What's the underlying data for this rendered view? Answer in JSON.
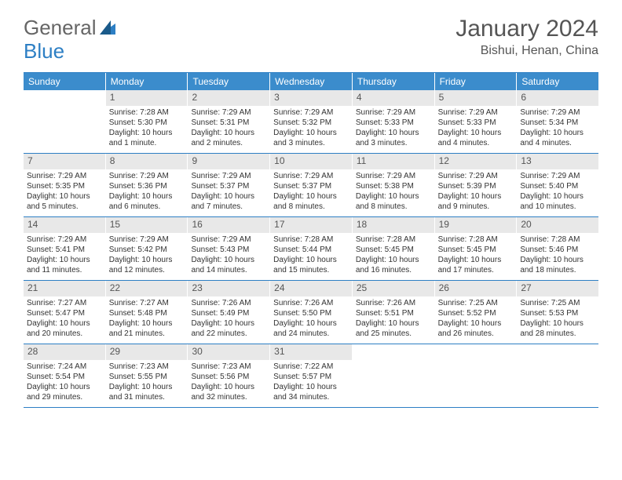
{
  "logo": {
    "text1": "General",
    "text2": "Blue"
  },
  "title": "January 2024",
  "location": "Bishui, Henan, China",
  "colors": {
    "header_bg": "#3b8ccc",
    "border": "#2d7fc4",
    "daynum_bg": "#e8e8e8",
    "text": "#555555"
  },
  "weekdays": [
    "Sunday",
    "Monday",
    "Tuesday",
    "Wednesday",
    "Thursday",
    "Friday",
    "Saturday"
  ],
  "start_offset": 1,
  "days": [
    {
      "n": 1,
      "sr": "7:28 AM",
      "ss": "5:30 PM",
      "dl": "10 hours and 1 minute."
    },
    {
      "n": 2,
      "sr": "7:29 AM",
      "ss": "5:31 PM",
      "dl": "10 hours and 2 minutes."
    },
    {
      "n": 3,
      "sr": "7:29 AM",
      "ss": "5:32 PM",
      "dl": "10 hours and 3 minutes."
    },
    {
      "n": 4,
      "sr": "7:29 AM",
      "ss": "5:33 PM",
      "dl": "10 hours and 3 minutes."
    },
    {
      "n": 5,
      "sr": "7:29 AM",
      "ss": "5:33 PM",
      "dl": "10 hours and 4 minutes."
    },
    {
      "n": 6,
      "sr": "7:29 AM",
      "ss": "5:34 PM",
      "dl": "10 hours and 4 minutes."
    },
    {
      "n": 7,
      "sr": "7:29 AM",
      "ss": "5:35 PM",
      "dl": "10 hours and 5 minutes."
    },
    {
      "n": 8,
      "sr": "7:29 AM",
      "ss": "5:36 PM",
      "dl": "10 hours and 6 minutes."
    },
    {
      "n": 9,
      "sr": "7:29 AM",
      "ss": "5:37 PM",
      "dl": "10 hours and 7 minutes."
    },
    {
      "n": 10,
      "sr": "7:29 AM",
      "ss": "5:37 PM",
      "dl": "10 hours and 8 minutes."
    },
    {
      "n": 11,
      "sr": "7:29 AM",
      "ss": "5:38 PM",
      "dl": "10 hours and 8 minutes."
    },
    {
      "n": 12,
      "sr": "7:29 AM",
      "ss": "5:39 PM",
      "dl": "10 hours and 9 minutes."
    },
    {
      "n": 13,
      "sr": "7:29 AM",
      "ss": "5:40 PM",
      "dl": "10 hours and 10 minutes."
    },
    {
      "n": 14,
      "sr": "7:29 AM",
      "ss": "5:41 PM",
      "dl": "10 hours and 11 minutes."
    },
    {
      "n": 15,
      "sr": "7:29 AM",
      "ss": "5:42 PM",
      "dl": "10 hours and 12 minutes."
    },
    {
      "n": 16,
      "sr": "7:29 AM",
      "ss": "5:43 PM",
      "dl": "10 hours and 14 minutes."
    },
    {
      "n": 17,
      "sr": "7:28 AM",
      "ss": "5:44 PM",
      "dl": "10 hours and 15 minutes."
    },
    {
      "n": 18,
      "sr": "7:28 AM",
      "ss": "5:45 PM",
      "dl": "10 hours and 16 minutes."
    },
    {
      "n": 19,
      "sr": "7:28 AM",
      "ss": "5:45 PM",
      "dl": "10 hours and 17 minutes."
    },
    {
      "n": 20,
      "sr": "7:28 AM",
      "ss": "5:46 PM",
      "dl": "10 hours and 18 minutes."
    },
    {
      "n": 21,
      "sr": "7:27 AM",
      "ss": "5:47 PM",
      "dl": "10 hours and 20 minutes."
    },
    {
      "n": 22,
      "sr": "7:27 AM",
      "ss": "5:48 PM",
      "dl": "10 hours and 21 minutes."
    },
    {
      "n": 23,
      "sr": "7:26 AM",
      "ss": "5:49 PM",
      "dl": "10 hours and 22 minutes."
    },
    {
      "n": 24,
      "sr": "7:26 AM",
      "ss": "5:50 PM",
      "dl": "10 hours and 24 minutes."
    },
    {
      "n": 25,
      "sr": "7:26 AM",
      "ss": "5:51 PM",
      "dl": "10 hours and 25 minutes."
    },
    {
      "n": 26,
      "sr": "7:25 AM",
      "ss": "5:52 PM",
      "dl": "10 hours and 26 minutes."
    },
    {
      "n": 27,
      "sr": "7:25 AM",
      "ss": "5:53 PM",
      "dl": "10 hours and 28 minutes."
    },
    {
      "n": 28,
      "sr": "7:24 AM",
      "ss": "5:54 PM",
      "dl": "10 hours and 29 minutes."
    },
    {
      "n": 29,
      "sr": "7:23 AM",
      "ss": "5:55 PM",
      "dl": "10 hours and 31 minutes."
    },
    {
      "n": 30,
      "sr": "7:23 AM",
      "ss": "5:56 PM",
      "dl": "10 hours and 32 minutes."
    },
    {
      "n": 31,
      "sr": "7:22 AM",
      "ss": "5:57 PM",
      "dl": "10 hours and 34 minutes."
    }
  ],
  "labels": {
    "sunrise": "Sunrise:",
    "sunset": "Sunset:",
    "daylight": "Daylight:"
  }
}
